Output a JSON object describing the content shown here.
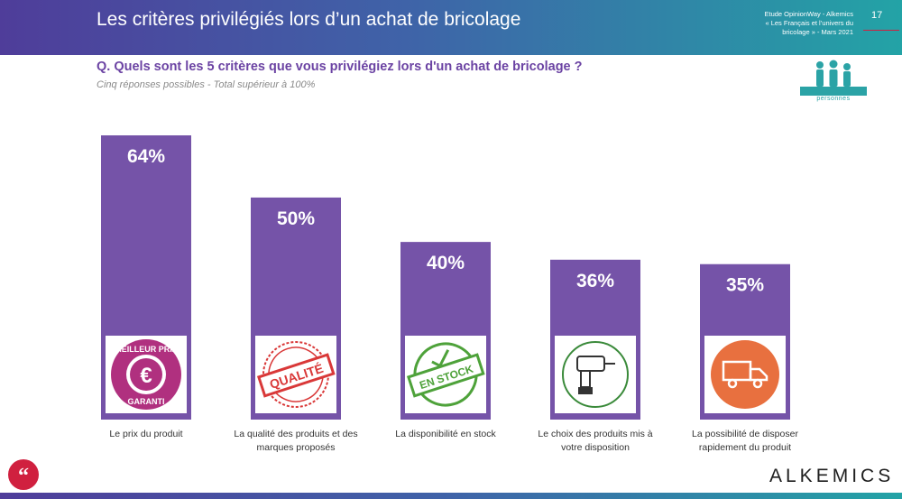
{
  "header": {
    "title": "Les critères privilégiés lors d’un achat de bricolage",
    "study_line1": "Etude OpinionWay - Alkemics",
    "study_line2": "« Les Français et l’univers du",
    "study_line3": "bricolage » - Mars 2021",
    "page_number": "17"
  },
  "question": "Q. Quels sont les 5 critères que vous privilégiez lors d'un achat de bricolage ?",
  "subtitle": "Cinq réponses possibles - Total supérieur à 100%",
  "people_icon": {
    "icon": "people-group-icon",
    "label": "personnes"
  },
  "chart_data": {
    "type": "bar",
    "categories": [
      "Le prix du produit",
      "La qualité des produits et des marques proposés",
      "La disponibilité en stock",
      "Le choix des produits mis à votre disposition",
      "La possibilité de disposer rapidement du produit"
    ],
    "category_lines": [
      [
        "Le prix du produit"
      ],
      [
        "La qualité des produits et des",
        "marques proposés"
      ],
      [
        "La disponibilité en stock"
      ],
      [
        "Le choix des produits mis à",
        "votre disposition"
      ],
      [
        "La possibilité de disposer",
        "rapidement du produit"
      ]
    ],
    "values": [
      64,
      50,
      40,
      36,
      35
    ],
    "value_labels": [
      "64%",
      "50%",
      "40%",
      "36%",
      "35%"
    ],
    "unit": "%",
    "ylim": [
      0,
      100
    ],
    "grid": false,
    "bar_color": "#7553a8",
    "icons": [
      {
        "name": "meilleur-prix-garanti-icon",
        "text_top": "MEILLEUR PRIX",
        "symbol": "€",
        "text_bottom": "GARANTI",
        "color": "#b0307f"
      },
      {
        "name": "qualite-stamp-icon",
        "text": "QUALITÉ",
        "color": "#d93838"
      },
      {
        "name": "en-stock-stamp-icon",
        "text": "EN STOCK",
        "color": "#4ea23a"
      },
      {
        "name": "drill-icon",
        "color": "#3a8a3a"
      },
      {
        "name": "delivery-truck-icon",
        "color": "#e8703f"
      }
    ]
  },
  "footer": {
    "brand": "ALKEMICS",
    "quote_icon": "quote-icon"
  },
  "colors": {
    "purple": "#7553a8",
    "title_purple": "#6b43a3",
    "teal": "#2ba3a6",
    "red": "#d0203f"
  }
}
